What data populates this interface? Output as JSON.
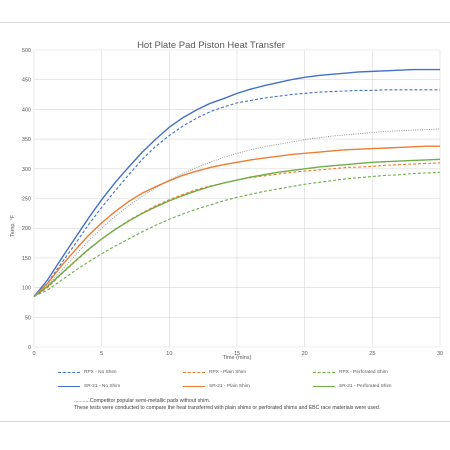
{
  "chart_data": {
    "type": "line",
    "title": "Hot Plate Pad Piston Heat Transfer",
    "xlabel": "Time (mins)",
    "ylabel": "Temp. °F",
    "xlim": [
      0,
      30
    ],
    "ylim": [
      0,
      500
    ],
    "xticks": [
      0,
      5,
      10,
      15,
      20,
      25,
      30
    ],
    "yticks": [
      0,
      50,
      100,
      150,
      200,
      250,
      300,
      350,
      400,
      450,
      500
    ],
    "grid": true,
    "legend_position": "bottom",
    "x": [
      0,
      1,
      2,
      3,
      4,
      5,
      6,
      7,
      8,
      9,
      10,
      11,
      12,
      13,
      14,
      15,
      16,
      17,
      18,
      19,
      20,
      21,
      22,
      23,
      24,
      25,
      26,
      27,
      28,
      29,
      30
    ],
    "series": [
      {
        "name": "RPX - No Shim",
        "color": "#4472c4",
        "dash": "dashed",
        "values": [
          85,
          108,
          140,
          172,
          205,
          235,
          263,
          290,
          316,
          338,
          356,
          372,
          385,
          396,
          404,
          411,
          415,
          419,
          422,
          425,
          427,
          429,
          430,
          431,
          432,
          432,
          433,
          433,
          433,
          433,
          433
        ]
      },
      {
        "name": "RPX - Plain Shim",
        "color": "#ed7d31",
        "dash": "dashed",
        "values": [
          85,
          100,
          122,
          143,
          163,
          182,
          198,
          213,
          226,
          238,
          248,
          257,
          265,
          271,
          276,
          281,
          285,
          288,
          291,
          294,
          296,
          298,
          300,
          302,
          303,
          304,
          306,
          307,
          308,
          309,
          310
        ]
      },
      {
        "name": "RPX - Perforated Shim",
        "color": "#70ad47",
        "dash": "dashed",
        "values": [
          85,
          96,
          112,
          128,
          143,
          157,
          170,
          182,
          194,
          205,
          215,
          224,
          232,
          239,
          246,
          252,
          257,
          262,
          266,
          270,
          274,
          277,
          280,
          283,
          285,
          287,
          289,
          290,
          292,
          293,
          294
        ]
      },
      {
        "name": "SR-21 - No Shim",
        "color": "#4472c4",
        "dash": "solid",
        "values": [
          85,
          113,
          148,
          182,
          216,
          248,
          277,
          303,
          328,
          350,
          370,
          386,
          399,
          410,
          418,
          427,
          434,
          440,
          445,
          450,
          454,
          457,
          459,
          461,
          463,
          464,
          465,
          466,
          467,
          467,
          467
        ]
      },
      {
        "name": "SR-21 - Plain Shim",
        "color": "#ed7d31",
        "dash": "solid",
        "values": [
          85,
          107,
          136,
          162,
          187,
          209,
          228,
          245,
          259,
          270,
          280,
          289,
          296,
          302,
          307,
          311,
          315,
          318,
          321,
          324,
          326,
          328,
          330,
          332,
          333,
          334,
          335,
          336,
          337,
          338,
          338
        ]
      },
      {
        "name": "SR-21 - Perforated Shim",
        "color": "#70ad47",
        "dash": "solid",
        "values": [
          85,
          102,
          123,
          144,
          164,
          182,
          198,
          212,
          225,
          236,
          246,
          255,
          263,
          270,
          276,
          281,
          286,
          290,
          294,
          297,
          300,
          303,
          305,
          307,
          309,
          311,
          312,
          313,
          314,
          315,
          316
        ]
      },
      {
        "name": "Competitor popular semi-metallic pads without shim",
        "color": "#8c8c8c",
        "dash": "dotted",
        "values": [
          85,
          104,
          128,
          153,
          178,
          200,
          220,
          238,
          254,
          268,
          281,
          292,
          302,
          311,
          319,
          326,
          332,
          337,
          341,
          345,
          349,
          352,
          355,
          357,
          359,
          361,
          363,
          364,
          365,
          366,
          367
        ]
      }
    ]
  },
  "notes": {
    "competitor": "...........Competitor popular semi-metallic pads without shim.",
    "tests": "These tests were conducted to  compare the heat transferred with plain shims or perforated shims and EBC race materials were used."
  }
}
